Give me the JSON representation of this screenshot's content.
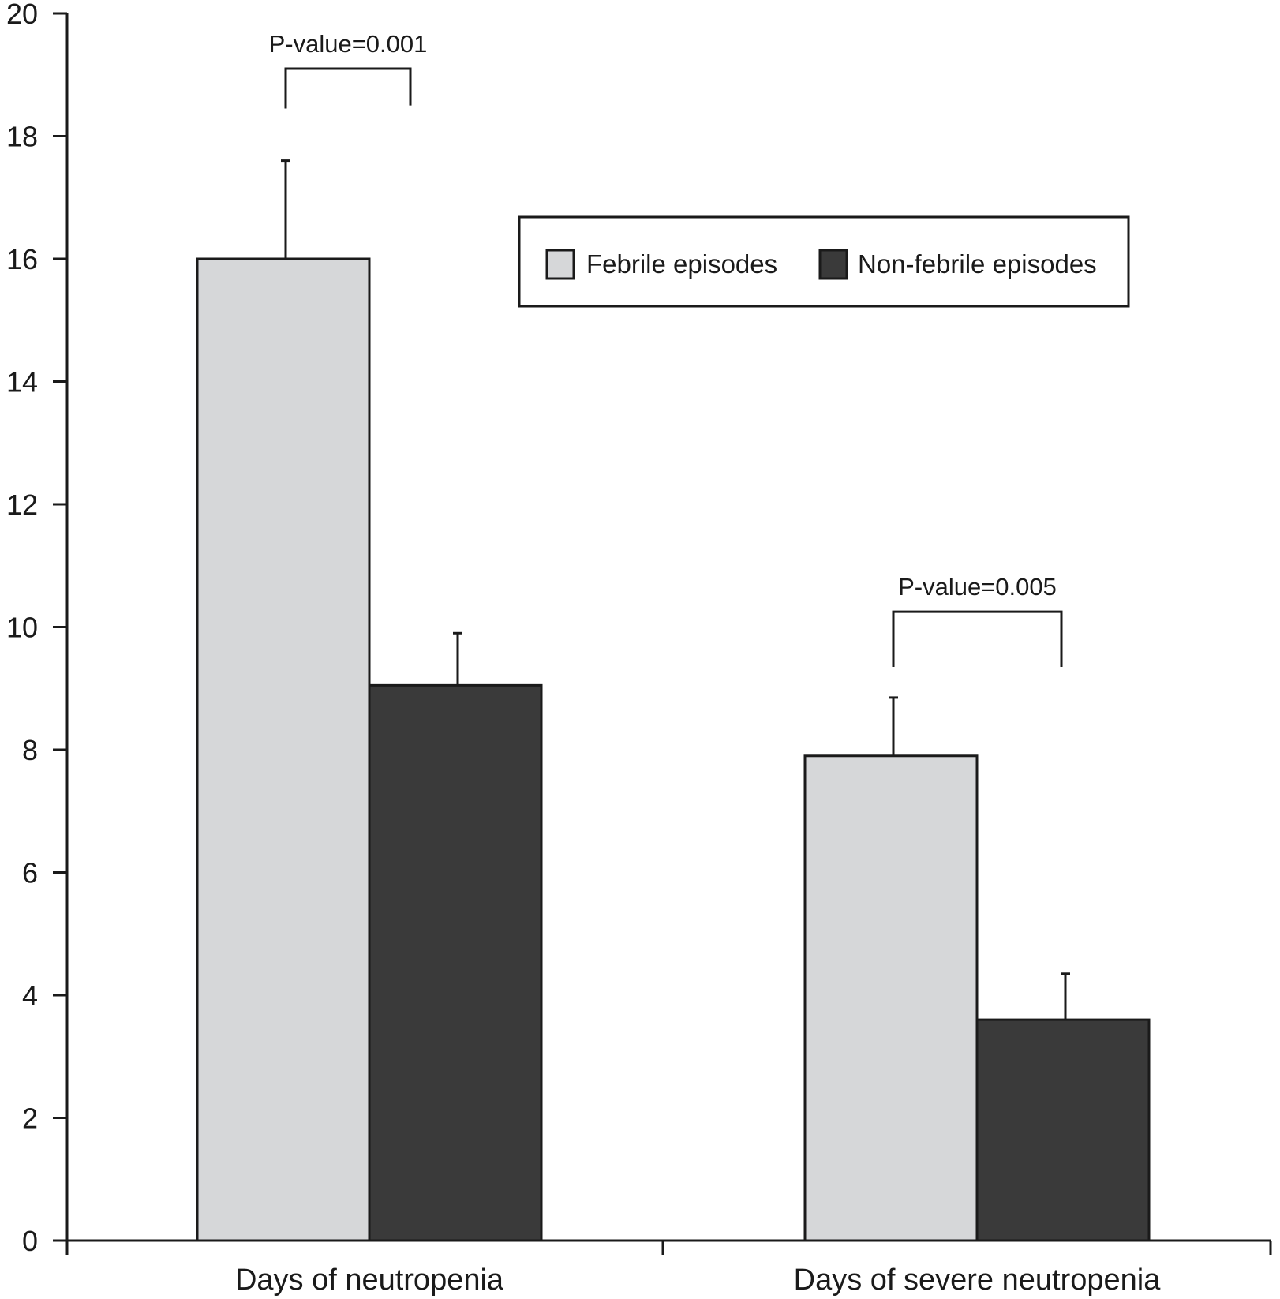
{
  "chart_data": {
    "type": "bar",
    "categories": [
      "Days of neutropenia",
      "Days of severe neutropenia"
    ],
    "series": [
      {
        "name": "Febrile episodes",
        "values": [
          16.0,
          7.9
        ],
        "errors": [
          1.6,
          0.95
        ],
        "color": "#d6d7d9"
      },
      {
        "name": "Non-febrile episodes",
        "values": [
          9.05,
          3.6
        ],
        "errors": [
          0.85,
          0.75
        ],
        "color": "#3a3a3a"
      }
    ],
    "ylim": [
      0,
      20
    ],
    "yticks": [
      0,
      2,
      4,
      6,
      8,
      10,
      12,
      14,
      16,
      18,
      20
    ],
    "xlabel": "",
    "ylabel": "",
    "title": "",
    "legend_position": "top-right",
    "grid": false,
    "annotations": [
      {
        "text": "P-value=0.001",
        "category_index": 0,
        "bracket_y": 19.1,
        "bracket_drop_left": 18.45,
        "bracket_drop_right": 18.5
      },
      {
        "text": "P-value=0.005",
        "category_index": 1,
        "bracket_y": 10.25,
        "bracket_drop_left": 9.35,
        "bracket_drop_right": 9.35
      }
    ]
  }
}
